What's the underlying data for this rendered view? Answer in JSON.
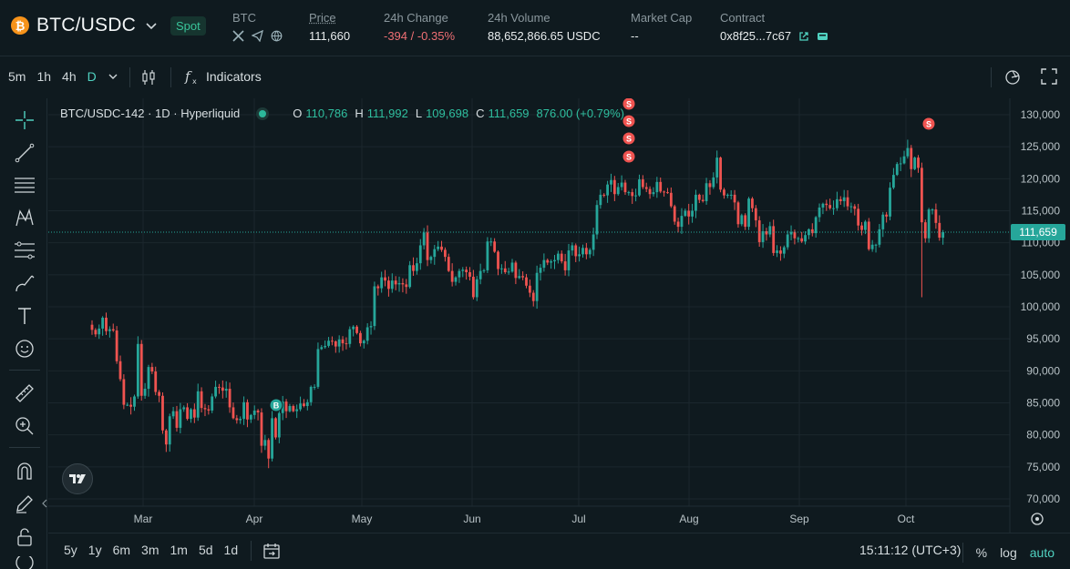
{
  "header": {
    "pair": "BTC/USDC",
    "market_type": "Spot",
    "coin_label": "BTC",
    "price_label": "Price",
    "price": "111,660",
    "change_label": "24h Change",
    "change": "-394 / -0.35%",
    "volume_label": "24h Volume",
    "volume": "88,652,866.65 USDC",
    "mcap_label": "Market Cap",
    "mcap": "--",
    "contract_label": "Contract",
    "contract": "0x8f25...7c67",
    "icons": [
      "bitcoin-icon",
      "chevron-down-icon",
      "x-icon",
      "telegram-icon",
      "globe-icon",
      "external-link-icon",
      "wallet-icon"
    ]
  },
  "toolbar": {
    "intervals": [
      "5m",
      "1h",
      "4h",
      "D"
    ],
    "active_interval": "D",
    "indicators": "Indicators"
  },
  "legend": {
    "symbol": "BTC/USDC-142 · 1D · Hyperliquid",
    "o_label": "O",
    "o": "110,786",
    "h_label": "H",
    "h": "111,992",
    "l_label": "L",
    "l": "109,698",
    "c_label": "C",
    "c": "111,659",
    "change": "876.00 (+0.79%)"
  },
  "bottom": {
    "ranges": [
      "5y",
      "1y",
      "6m",
      "3m",
      "1m",
      "5d",
      "1d"
    ],
    "time": "15:11:12 (UTC+3)",
    "percent": "%",
    "log": "log",
    "auto": "auto"
  },
  "chart_data": {
    "type": "candlestick",
    "y_ticks": [
      "130,000",
      "125,000",
      "120,000",
      "115,000",
      "110,000",
      "105,000",
      "100,000",
      "95,000",
      "90,000",
      "85,000",
      "80,000",
      "75,000",
      "70,000"
    ],
    "y_range": [
      70000,
      130000
    ],
    "x_labels": [
      "Mar",
      "Apr",
      "May",
      "Jun",
      "Jul",
      "Aug",
      "Sep",
      "Oct"
    ],
    "last_price": 111659,
    "last_price_label": "111,659",
    "markers": [
      {
        "label": "B",
        "date": "Apr 7",
        "price": 78500
      },
      {
        "label": "S",
        "date": "Jul 14",
        "price": 122700
      },
      {
        "label": "S",
        "date": "Jul 14",
        "price": 122700
      },
      {
        "label": "S",
        "date": "Jul 14",
        "price": 122700
      },
      {
        "label": "S",
        "date": "Jul 14",
        "price": 122700
      },
      {
        "label": "S",
        "date": "Oct 6",
        "price": 126000
      }
    ],
    "colors": {
      "up": "#26a69a",
      "down": "#ef5350",
      "bg": "#0f1a1f",
      "grid": "#1b272d",
      "price_tag": "#26a69a"
    },
    "closes": [
      {
        "date": "Feb 17",
        "c": 96400
      },
      {
        "date": "Feb 18",
        "c": 95700
      },
      {
        "date": "Feb 19",
        "c": 96600
      },
      {
        "date": "Feb 20",
        "c": 98300
      },
      {
        "date": "Feb 21",
        "c": 96200
      },
      {
        "date": "Feb 22",
        "c": 96500
      },
      {
        "date": "Feb 23",
        "c": 96300
      },
      {
        "date": "Feb 24",
        "c": 91500
      },
      {
        "date": "Feb 25",
        "c": 88700
      },
      {
        "date": "Feb 26",
        "c": 84700
      },
      {
        "date": "Feb 27",
        "c": 84700
      },
      {
        "date": "Feb 28",
        "c": 84400
      },
      {
        "date": "Mar 1",
        "c": 86000
      },
      {
        "date": "Mar 2",
        "c": 94200
      },
      {
        "date": "Mar 3",
        "c": 86100
      },
      {
        "date": "Mar 4",
        "c": 87200
      },
      {
        "date": "Mar 5",
        "c": 90600
      },
      {
        "date": "Mar 6",
        "c": 89900
      },
      {
        "date": "Mar 7",
        "c": 86700
      },
      {
        "date": "Mar 8",
        "c": 86100
      },
      {
        "date": "Mar 9",
        "c": 80700
      },
      {
        "date": "Mar 10",
        "c": 78500
      },
      {
        "date": "Mar 11",
        "c": 82900
      },
      {
        "date": "Mar 12",
        "c": 83700
      },
      {
        "date": "Mar 13",
        "c": 81100
      },
      {
        "date": "Mar 14",
        "c": 84000
      },
      {
        "date": "Mar 15",
        "c": 84300
      },
      {
        "date": "Mar 16",
        "c": 82500
      },
      {
        "date": "Mar 17",
        "c": 84000
      },
      {
        "date": "Mar 18",
        "c": 82700
      },
      {
        "date": "Mar 19",
        "c": 86800
      },
      {
        "date": "Mar 20",
        "c": 84200
      },
      {
        "date": "Mar 21",
        "c": 84000
      },
      {
        "date": "Mar 22",
        "c": 83800
      },
      {
        "date": "Mar 23",
        "c": 86000
      },
      {
        "date": "Mar 24",
        "c": 87500
      },
      {
        "date": "Mar 25",
        "c": 87400
      },
      {
        "date": "Mar 26",
        "c": 86900
      },
      {
        "date": "Mar 27",
        "c": 87200
      },
      {
        "date": "Mar 28",
        "c": 84300
      },
      {
        "date": "Mar 29",
        "c": 82600
      },
      {
        "date": "Mar 30",
        "c": 82300
      },
      {
        "date": "Mar 31",
        "c": 82500
      },
      {
        "date": "Apr 1",
        "c": 85100
      },
      {
        "date": "Apr 2",
        "c": 82400
      },
      {
        "date": "Apr 3",
        "c": 83100
      },
      {
        "date": "Apr 4",
        "c": 83800
      },
      {
        "date": "Apr 5",
        "c": 83500
      },
      {
        "date": "Apr 6",
        "c": 78300
      },
      {
        "date": "Apr 7",
        "c": 79200
      },
      {
        "date": "Apr 8",
        "c": 76300
      },
      {
        "date": "Apr 9",
        "c": 82600
      },
      {
        "date": "Apr 10",
        "c": 79600
      },
      {
        "date": "Apr 11",
        "c": 83400
      },
      {
        "date": "Apr 12",
        "c": 85200
      },
      {
        "date": "Apr 13",
        "c": 83700
      },
      {
        "date": "Apr 14",
        "c": 84500
      },
      {
        "date": "Apr 15",
        "c": 83700
      },
      {
        "date": "Apr 16",
        "c": 84000
      },
      {
        "date": "Apr 17",
        "c": 84900
      },
      {
        "date": "Apr 18",
        "c": 84500
      },
      {
        "date": "Apr 19",
        "c": 85100
      },
      {
        "date": "Apr 20",
        "c": 87500
      },
      {
        "date": "Apr 21",
        "c": 87500
      },
      {
        "date": "Apr 22",
        "c": 93400
      },
      {
        "date": "Apr 23",
        "c": 93700
      },
      {
        "date": "Apr 24",
        "c": 93900
      },
      {
        "date": "Apr 25",
        "c": 94700
      },
      {
        "date": "Apr 26",
        "c": 94600
      },
      {
        "date": "Apr 27",
        "c": 93800
      },
      {
        "date": "Apr 28",
        "c": 94900
      },
      {
        "date": "Apr 29",
        "c": 94300
      },
      {
        "date": "Apr 30",
        "c": 94200
      },
      {
        "date": "May 1",
        "c": 96500
      },
      {
        "date": "May 2",
        "c": 96900
      },
      {
        "date": "May 3",
        "c": 95900
      },
      {
        "date": "May 4",
        "c": 94300
      },
      {
        "date": "May 5",
        "c": 94700
      },
      {
        "date": "May 6",
        "c": 96800
      },
      {
        "date": "May 7",
        "c": 97000
      },
      {
        "date": "May 8",
        "c": 103200
      },
      {
        "date": "May 9",
        "c": 102900
      },
      {
        "date": "May 10",
        "c": 104600
      },
      {
        "date": "May 11",
        "c": 104100
      },
      {
        "date": "May 12",
        "c": 102800
      },
      {
        "date": "May 13",
        "c": 104100
      },
      {
        "date": "May 14",
        "c": 103500
      },
      {
        "date": "May 15",
        "c": 103700
      },
      {
        "date": "May 16",
        "c": 103500
      },
      {
        "date": "May 17",
        "c": 103100
      },
      {
        "date": "May 18",
        "c": 106500
      },
      {
        "date": "May 19",
        "c": 105600
      },
      {
        "date": "May 20",
        "c": 106800
      },
      {
        "date": "May 21",
        "c": 109600
      },
      {
        "date": "May 22",
        "c": 111600
      },
      {
        "date": "May 23",
        "c": 107300
      },
      {
        "date": "May 24",
        "c": 107800
      },
      {
        "date": "May 25",
        "c": 109000
      },
      {
        "date": "May 26",
        "c": 109400
      },
      {
        "date": "May 27",
        "c": 108900
      },
      {
        "date": "May 28",
        "c": 107800
      },
      {
        "date": "May 29",
        "c": 105600
      },
      {
        "date": "May 30",
        "c": 103900
      },
      {
        "date": "May 31",
        "c": 104600
      },
      {
        "date": "Jun 1",
        "c": 105600
      },
      {
        "date": "Jun 2",
        "c": 105800
      },
      {
        "date": "Jun 3",
        "c": 105400
      },
      {
        "date": "Jun 4",
        "c": 104700
      },
      {
        "date": "Jun 5",
        "c": 101500
      },
      {
        "date": "Jun 6",
        "c": 104300
      },
      {
        "date": "Jun 7",
        "c": 105600
      },
      {
        "date": "Jun 8",
        "c": 105700
      },
      {
        "date": "Jun 9",
        "c": 110200
      },
      {
        "date": "Jun 10",
        "c": 110200
      },
      {
        "date": "Jun 11",
        "c": 108600
      },
      {
        "date": "Jun 12",
        "c": 105900
      },
      {
        "date": "Jun 13",
        "c": 106000
      },
      {
        "date": "Jun 14",
        "c": 105400
      },
      {
        "date": "Jun 15",
        "c": 105500
      },
      {
        "date": "Jun 16",
        "c": 106900
      },
      {
        "date": "Jun 17",
        "c": 104500
      },
      {
        "date": "Jun 18",
        "c": 104800
      },
      {
        "date": "Jun 19",
        "c": 104600
      },
      {
        "date": "Jun 20",
        "c": 103300
      },
      {
        "date": "Jun 21",
        "c": 102200
      },
      {
        "date": "Jun 22",
        "c": 100900
      },
      {
        "date": "Jun 23",
        "c": 105300
      },
      {
        "date": "Jun 24",
        "c": 106100
      },
      {
        "date": "Jun 25",
        "c": 107300
      },
      {
        "date": "Jun 26",
        "c": 106900
      },
      {
        "date": "Jun 27",
        "c": 107100
      },
      {
        "date": "Jun 28",
        "c": 107300
      },
      {
        "date": "Jun 29",
        "c": 108300
      },
      {
        "date": "Jun 30",
        "c": 107100
      },
      {
        "date": "Jul 1",
        "c": 105700
      },
      {
        "date": "Jul 2",
        "c": 108800
      },
      {
        "date": "Jul 3",
        "c": 109600
      },
      {
        "date": "Jul 4",
        "c": 107900
      },
      {
        "date": "Jul 5",
        "c": 108200
      },
      {
        "date": "Jul 6",
        "c": 109200
      },
      {
        "date": "Jul 7",
        "c": 108200
      },
      {
        "date": "Jul 8",
        "c": 108900
      },
      {
        "date": "Jul 9",
        "c": 111300
      },
      {
        "date": "Jul 10",
        "c": 115900
      },
      {
        "date": "Jul 11",
        "c": 117500
      },
      {
        "date": "Jul 12",
        "c": 117400
      },
      {
        "date": "Jul 13",
        "c": 119100
      },
      {
        "date": "Jul 14",
        "c": 119800
      },
      {
        "date": "Jul 15",
        "c": 117600
      },
      {
        "date": "Jul 16",
        "c": 118700
      },
      {
        "date": "Jul 17",
        "c": 119400
      },
      {
        "date": "Jul 18",
        "c": 117900
      },
      {
        "date": "Jul 19",
        "c": 117900
      },
      {
        "date": "Jul 20",
        "c": 117300
      },
      {
        "date": "Jul 21",
        "c": 117400
      },
      {
        "date": "Jul 22",
        "c": 119900
      },
      {
        "date": "Jul 23",
        "c": 118700
      },
      {
        "date": "Jul 24",
        "c": 118400
      },
      {
        "date": "Jul 25",
        "c": 117600
      },
      {
        "date": "Jul 26",
        "c": 117900
      },
      {
        "date": "Jul 27",
        "c": 119500
      },
      {
        "date": "Jul 28",
        "c": 118000
      },
      {
        "date": "Jul 29",
        "c": 117900
      },
      {
        "date": "Jul 30",
        "c": 117800
      },
      {
        "date": "Jul 31",
        "c": 115700
      },
      {
        "date": "Aug 1",
        "c": 113300
      },
      {
        "date": "Aug 2",
        "c": 112500
      },
      {
        "date": "Aug 3",
        "c": 114200
      },
      {
        "date": "Aug 4",
        "c": 115000
      },
      {
        "date": "Aug 5",
        "c": 114100
      },
      {
        "date": "Aug 6",
        "c": 115000
      },
      {
        "date": "Aug 7",
        "c": 117500
      },
      {
        "date": "Aug 8",
        "c": 116700
      },
      {
        "date": "Aug 9",
        "c": 116500
      },
      {
        "date": "Aug 10",
        "c": 119300
      },
      {
        "date": "Aug 11",
        "c": 118700
      },
      {
        "date": "Aug 12",
        "c": 120200
      },
      {
        "date": "Aug 13",
        "c": 123300
      },
      {
        "date": "Aug 14",
        "c": 118300
      },
      {
        "date": "Aug 15",
        "c": 117400
      },
      {
        "date": "Aug 16",
        "c": 117500
      },
      {
        "date": "Aug 17",
        "c": 117500
      },
      {
        "date": "Aug 18",
        "c": 116300
      },
      {
        "date": "Aug 19",
        "c": 112900
      },
      {
        "date": "Aug 20",
        "c": 114300
      },
      {
        "date": "Aug 21",
        "c": 112500
      },
      {
        "date": "Aug 22",
        "c": 116900
      },
      {
        "date": "Aug 23",
        "c": 115400
      },
      {
        "date": "Aug 24",
        "c": 113500
      },
      {
        "date": "Aug 25",
        "c": 110100
      },
      {
        "date": "Aug 26",
        "c": 111800
      },
      {
        "date": "Aug 27",
        "c": 111300
      },
      {
        "date": "Aug 28",
        "c": 112600
      },
      {
        "date": "Aug 29",
        "c": 108400
      },
      {
        "date": "Aug 30",
        "c": 108800
      },
      {
        "date": "Aug 31",
        "c": 108300
      },
      {
        "date": "Sep 1",
        "c": 109300
      },
      {
        "date": "Sep 2",
        "c": 111300
      },
      {
        "date": "Sep 3",
        "c": 111700
      },
      {
        "date": "Sep 4",
        "c": 110700
      },
      {
        "date": "Sep 5",
        "c": 110700
      },
      {
        "date": "Sep 6",
        "c": 110200
      },
      {
        "date": "Sep 7",
        "c": 111200
      },
      {
        "date": "Sep 8",
        "c": 112100
      },
      {
        "date": "Sep 9",
        "c": 111500
      },
      {
        "date": "Sep 10",
        "c": 114000
      },
      {
        "date": "Sep 11",
        "c": 115500
      },
      {
        "date": "Sep 12",
        "c": 116100
      },
      {
        "date": "Sep 13",
        "c": 115900
      },
      {
        "date": "Sep 14",
        "c": 115400
      },
      {
        "date": "Sep 15",
        "c": 115400
      },
      {
        "date": "Sep 16",
        "c": 116800
      },
      {
        "date": "Sep 17",
        "c": 116500
      },
      {
        "date": "Sep 18",
        "c": 117100
      },
      {
        "date": "Sep 19",
        "c": 115700
      },
      {
        "date": "Sep 20",
        "c": 115700
      },
      {
        "date": "Sep 21",
        "c": 115300
      },
      {
        "date": "Sep 22",
        "c": 112700
      },
      {
        "date": "Sep 23",
        "c": 112000
      },
      {
        "date": "Sep 24",
        "c": 113300
      },
      {
        "date": "Sep 25",
        "c": 109000
      },
      {
        "date": "Sep 26",
        "c": 109700
      },
      {
        "date": "Sep 27",
        "c": 109700
      },
      {
        "date": "Sep 28",
        "c": 112100
      },
      {
        "date": "Sep 29",
        "c": 114400
      },
      {
        "date": "Sep 30",
        "c": 114100
      },
      {
        "date": "Oct 1",
        "c": 118600
      },
      {
        "date": "Oct 2",
        "c": 120600
      },
      {
        "date": "Oct 3",
        "c": 122300
      },
      {
        "date": "Oct 4",
        "c": 122400
      },
      {
        "date": "Oct 5",
        "c": 123500
      },
      {
        "date": "Oct 6",
        "c": 124800
      },
      {
        "date": "Oct 7",
        "c": 121500
      },
      {
        "date": "Oct 8",
        "c": 123300
      },
      {
        "date": "Oct 9",
        "c": 121700
      },
      {
        "date": "Oct 10",
        "c": 113200
      },
      {
        "date": "Oct 11",
        "c": 110700
      },
      {
        "date": "Oct 12",
        "c": 115200
      },
      {
        "date": "Oct 13",
        "c": 115200
      },
      {
        "date": "Oct 14",
        "c": 113100
      },
      {
        "date": "Oct 15",
        "c": 110800
      },
      {
        "date": "Oct 16",
        "c": 111659
      }
    ]
  }
}
